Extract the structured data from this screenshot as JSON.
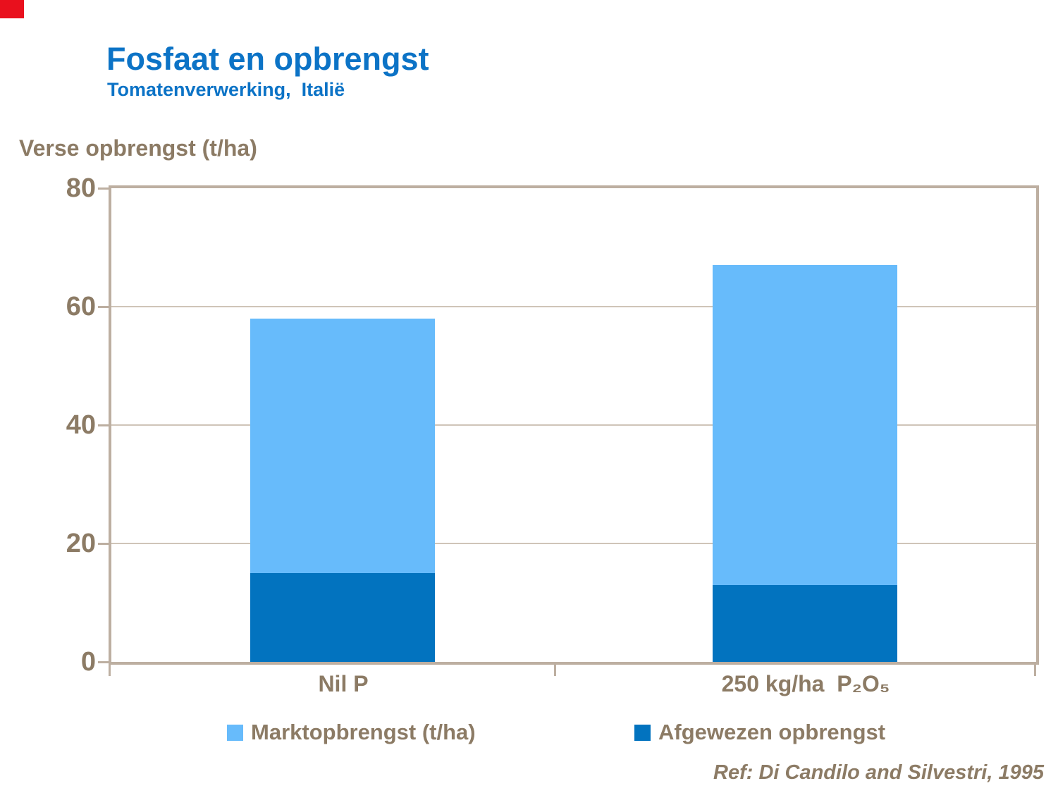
{
  "header": {
    "title": "Fosfaat en opbrengst",
    "subtitle": "Tomatenverwerking,  Italië"
  },
  "y_axis_title": "Verse opbrengst (t/ha)",
  "chart_data": {
    "type": "bar",
    "stacked": true,
    "title": "Fosfaat en opbrengst",
    "subtitle": "Tomatenverwerking,  Italië",
    "ylabel": "Verse opbrengst (t/ha)",
    "categories": [
      "Nil P",
      "250 kg/ha  P₂O₅"
    ],
    "series": [
      {
        "name": "Afgewezen opbrengst",
        "color": "#0273BF",
        "values": [
          15,
          13
        ]
      },
      {
        "name": "Marktopbrengst (t/ha)",
        "color": "#67BBFB",
        "values": [
          43,
          54
        ]
      }
    ],
    "totals": [
      58,
      67
    ],
    "ylim": [
      0,
      80
    ],
    "yticks": [
      0,
      20,
      40,
      60,
      80
    ],
    "grid": true,
    "legend_position": "bottom"
  },
  "legend": {
    "items": [
      {
        "label": "Marktopbrengst (t/ha)",
        "color": "#67BBFB"
      },
      {
        "label": "Afgewezen opbrengst",
        "color": "#0273BF"
      }
    ]
  },
  "footer": {
    "reference": "Ref: Di Candilo and Silvestri, 1995"
  },
  "colors": {
    "title_blue": "#0C73C6",
    "text_brown": "#8C7B65",
    "axis_tan": "#BDAFA1",
    "gridline_tan": "#CFC4B8",
    "bar_light_blue": "#67BBFB",
    "bar_dark_blue": "#0273BF",
    "corner_red": "#E9101D",
    "background": "#FFFFFF"
  }
}
